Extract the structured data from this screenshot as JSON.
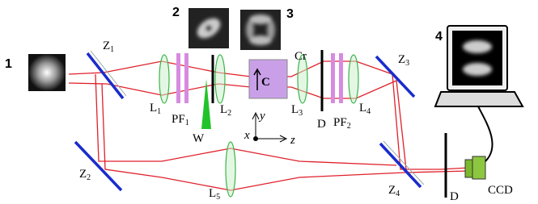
{
  "images": {
    "n1": "1",
    "n2": "2",
    "n3": "3",
    "n4": "4"
  },
  "labels": {
    "z1": {
      "text": "Z",
      "sub": "1"
    },
    "l1": {
      "text": "L",
      "sub": "1"
    },
    "pf1": {
      "text": "PF",
      "sub": "1"
    },
    "l2": {
      "text": "L",
      "sub": "2"
    },
    "w": "W",
    "c": "C",
    "cr": "Cr",
    "l3": {
      "text": "L",
      "sub": "3"
    },
    "d1": "D",
    "pf2": {
      "text": "PF",
      "sub": "2"
    },
    "l4": {
      "text": "L",
      "sub": "4"
    },
    "z3": {
      "text": "Z",
      "sub": "3"
    },
    "z2": {
      "text": "Z",
      "sub": "2"
    },
    "l5": {
      "text": "L",
      "sub": "5"
    },
    "z4": {
      "text": "Z",
      "sub": "4"
    },
    "d2": "D",
    "ccd": "CCD",
    "x": "x",
    "y": "y",
    "z": "z"
  }
}
